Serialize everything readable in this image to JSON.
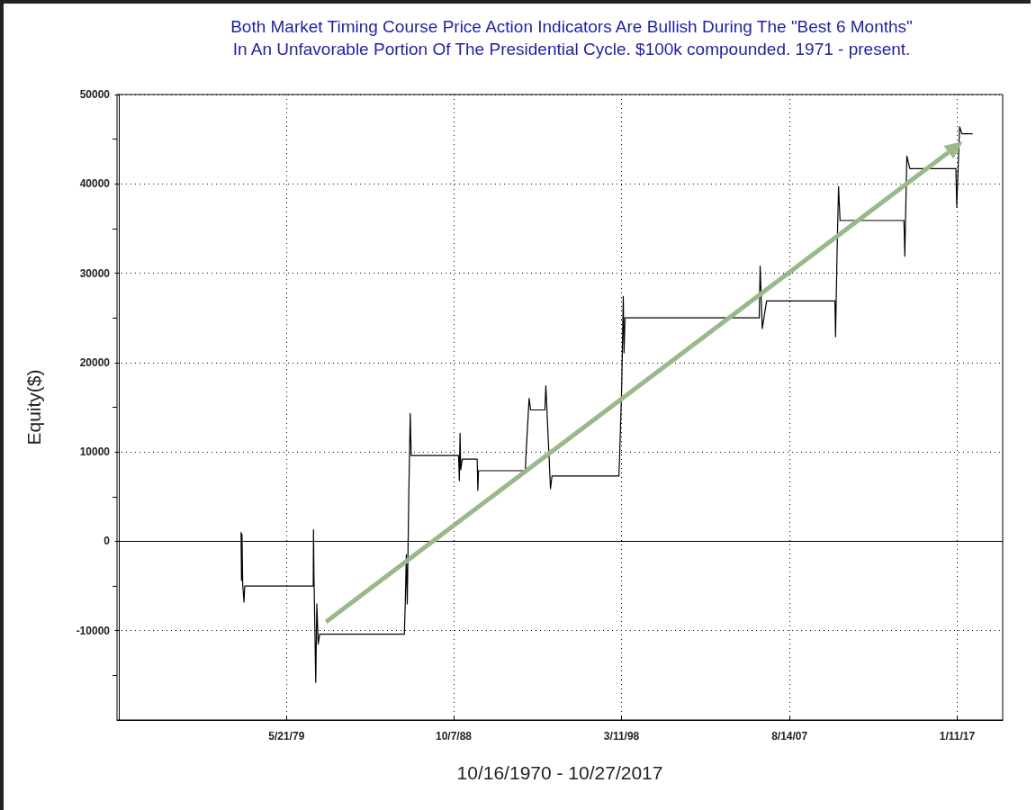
{
  "chart_data": {
    "type": "line",
    "title": "Both Market Timing Course Price Action Indicators Are Bullish During The \"Best 6 Months\"\nIn An Unfavorable Portion Of The Presidential Cycle. $100k compounded. 1971 - present.",
    "xlabel": "10/16/1970 - 10/27/2017",
    "ylabel": "Equity($)",
    "x": [
      "1976-11-01",
      "1976-11-10",
      "1976-11-20",
      "1976-12-05",
      "1977-01-01",
      "1977-01-15",
      "1980-11-20",
      "1980-11-25",
      "1980-12-05",
      "1981-01-10",
      "1981-02-01",
      "1981-03-01",
      "1981-04-01",
      "1986-01-01",
      "1986-01-20",
      "1986-02-10",
      "1986-03-01",
      "1986-04-01",
      "1986-05-01",
      "1986-05-20",
      "1989-01-15",
      "1989-02-01",
      "1989-02-15",
      "1989-03-01",
      "1989-04-01",
      "1990-02-01",
      "1990-02-15",
      "1990-03-01",
      "1992-10-15",
      "1992-11-01",
      "1993-01-01",
      "1993-02-01",
      "1993-11-20",
      "1993-12-10",
      "1994-02-01",
      "1994-03-15",
      "1994-04-15",
      "1998-01-15",
      "1998-02-01",
      "1998-03-15",
      "1998-04-15",
      "1998-05-01",
      "1998-05-20",
      "2005-12-01",
      "2005-12-20",
      "2006-02-01",
      "2006-05-01",
      "2010-03-01",
      "2010-03-15",
      "2010-04-15",
      "2010-05-15",
      "2010-06-15",
      "2014-01-15",
      "2014-02-01",
      "2014-03-15",
      "2014-05-15",
      "2016-12-15",
      "2017-01-01",
      "2017-03-01",
      "2017-04-15",
      "2017-11-15"
    ],
    "series": [
      {
        "color": "#000000",
        "values": [
          1000,
          -4400,
          800,
          -4900,
          -6800,
          -5000,
          -5000,
          1300,
          -4000,
          -15800,
          -7000,
          -11500,
          -10400,
          -10400,
          -6700,
          -1500,
          -7000,
          5000,
          14300,
          9600,
          9600,
          6800,
          12100,
          8000,
          9200,
          9200,
          5700,
          7900,
          7900,
          10000,
          16000,
          14700,
          14700,
          17400,
          11000,
          5900,
          7300,
          7300,
          9800,
          17500,
          27400,
          21100,
          25000,
          25000,
          30800,
          23800,
          26900,
          26900,
          22900,
          32400,
          39700,
          35900,
          35900,
          31900,
          43100,
          41700,
          41700,
          37400,
          46400,
          45600,
          45600
        ]
      }
    ],
    "xlim": [
      "1969-11-15",
      "2019-08-01"
    ],
    "xticks": [
      {
        "value": "1979-05-21",
        "label": "5/21/79"
      },
      {
        "value": "1988-10-07",
        "label": "10/7/88"
      },
      {
        "value": "1998-03-11",
        "label": "3/11/98"
      },
      {
        "value": "2007-08-14",
        "label": "8/14/07"
      },
      {
        "value": "2017-01-11",
        "label": "1/11/17"
      }
    ],
    "ylim": [
      -20000,
      50000
    ],
    "yticks": [
      {
        "value": -15000,
        "label": null
      },
      -10000,
      {
        "value": -5000,
        "label": null
      },
      0,
      {
        "value": 5000,
        "label": null
      },
      10000,
      {
        "value": 15000,
        "label": null
      },
      20000,
      {
        "value": 25000,
        "label": null
      },
      30000,
      {
        "value": 35000,
        "label": null
      },
      40000,
      {
        "value": 45000,
        "label": null
      },
      50000
    ],
    "ref_lines": [
      {
        "axis": "y",
        "value": 0,
        "color": "#000000",
        "line_style": "solid"
      }
    ],
    "grid": true,
    "marker": "none",
    "line_style": "solid"
  }
}
